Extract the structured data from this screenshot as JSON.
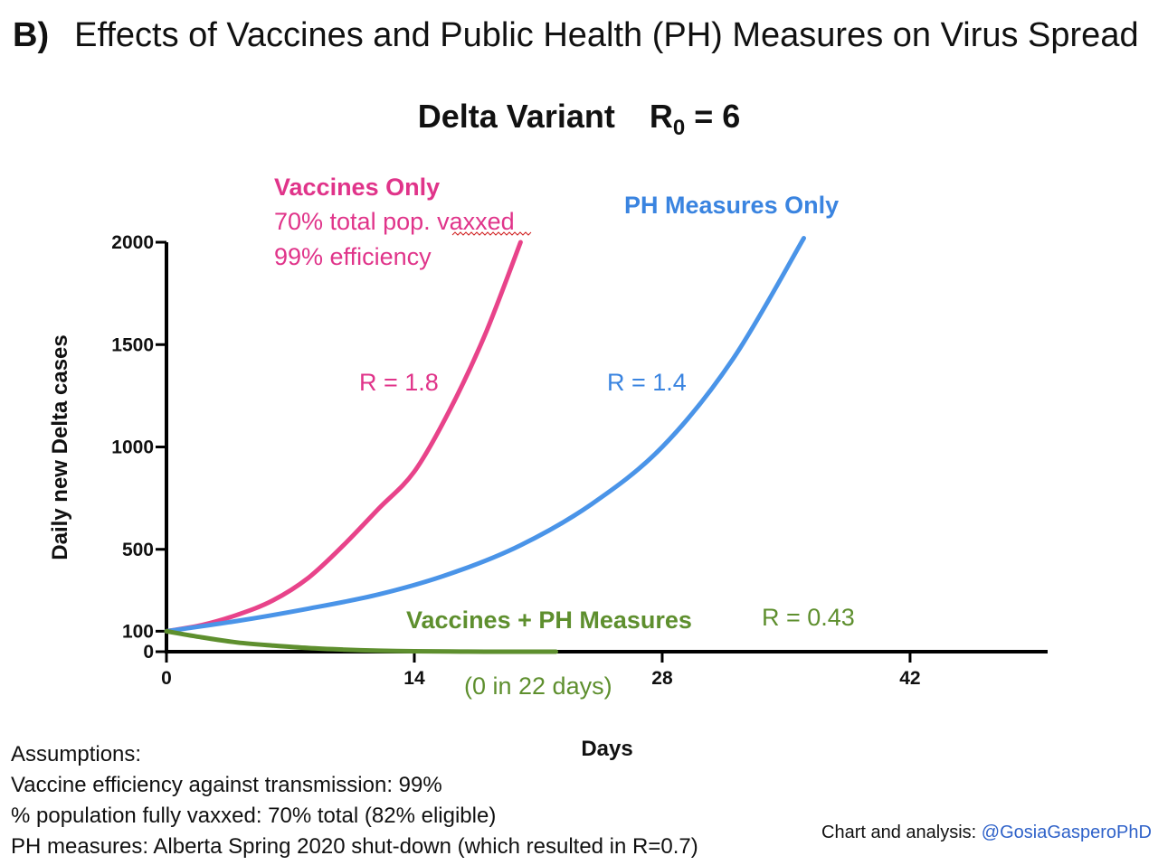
{
  "header": {
    "panel_label": "B)",
    "title": "Effects of Vaccines and Public Health (PH) Measures on Virus Spread",
    "subtitle_variant": "Delta Variant",
    "subtitle_r_symbol": "R",
    "subtitle_r_sub": "0",
    "subtitle_r_value": "= 6"
  },
  "chart_data": {
    "type": "line",
    "xlabel": "Days",
    "ylabel": "Daily new Delta cases",
    "xlim": [
      0,
      50
    ],
    "ylim": [
      0,
      2000
    ],
    "x_ticks": [
      0,
      14,
      28,
      42
    ],
    "y_ticks": [
      0,
      100,
      500,
      1000,
      1500,
      2000
    ],
    "series": [
      {
        "name": "Vaccines Only",
        "color": "#e8438a",
        "r_label": "R = 1.8",
        "x": [
          0,
          2,
          4,
          6,
          8,
          10,
          12,
          14,
          16,
          18,
          20
        ],
        "y": [
          100,
          130,
          180,
          250,
          360,
          520,
          700,
          880,
          1180,
          1550,
          2000
        ]
      },
      {
        "name": "PH Measures Only",
        "color": "#4a94e8",
        "r_label": "R = 1.4",
        "x": [
          0,
          4,
          8,
          12,
          16,
          20,
          24,
          28,
          32,
          36
        ],
        "y": [
          100,
          150,
          210,
          280,
          380,
          520,
          720,
          1000,
          1430,
          2020
        ]
      },
      {
        "name": "Vaccines + PH Measures",
        "color": "#5e8f2e",
        "r_label": "R = 0.43",
        "x": [
          0,
          2,
          4,
          6,
          8,
          10,
          12,
          14,
          16,
          18,
          20,
          22
        ],
        "y": [
          100,
          70,
          45,
          30,
          18,
          10,
          5,
          2,
          1,
          0,
          0,
          0
        ]
      }
    ]
  },
  "annotations": {
    "vaccines_only_title": "Vaccines Only",
    "vaccines_only_line2": "70% total pop. vaxxed",
    "vaccines_only_line3": "99% efficiency",
    "ph_only_title": "PH Measures Only",
    "combined_title": "Vaccines + PH Measures",
    "combined_note": "(0 in 22 days)"
  },
  "footer": {
    "assumptions_title": "Assumptions:",
    "lines": [
      "Vaccine efficiency against transmission: 99%",
      "% population fully vaxxed: 70% total (82% eligible)",
      "PH measures: Alberta Spring 2020 shut-down (which resulted in R=0.7)"
    ],
    "credit_prefix": "Chart and analysis:",
    "credit_handle": "@GosiaGasperoPhD"
  }
}
